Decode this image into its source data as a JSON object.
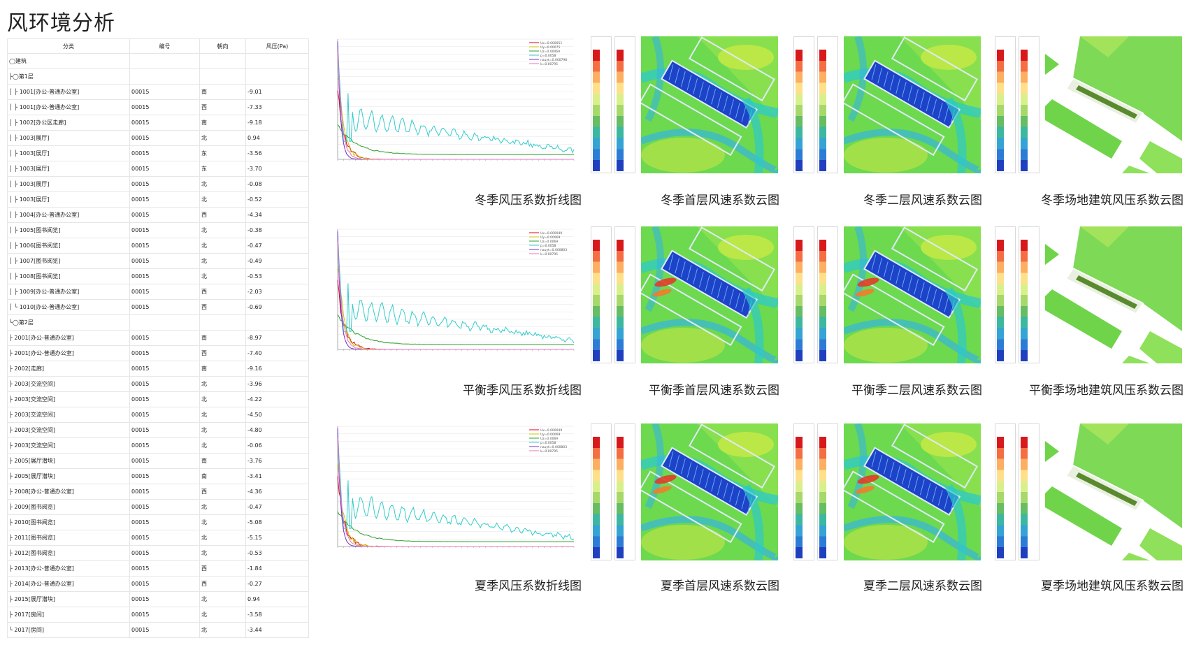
{
  "title": "风环境分析",
  "table": {
    "headers": [
      "分类",
      "编号",
      "朝向",
      "风压(Pa)"
    ],
    "rows": [
      [
        "◯建筑",
        "",
        "",
        ""
      ],
      [
        "├◯第1层",
        "",
        "",
        ""
      ],
      [
        "│ ├ 1001[办公-普通办公室]",
        "00015",
        "南",
        "-9.01"
      ],
      [
        "│ ├ 1001[办公-普通办公室]",
        "00015",
        "西",
        "-7.33"
      ],
      [
        "│ ├ 1002[办公区走廊]",
        "00015",
        "南",
        "-9.18"
      ],
      [
        "│ ├ 1003[展厅]",
        "00015",
        "北",
        "0.94"
      ],
      [
        "│ ├ 1003[展厅]",
        "00015",
        "东",
        "-3.56"
      ],
      [
        "│ ├ 1003[展厅]",
        "00015",
        "东",
        "-3.70"
      ],
      [
        "│ ├ 1003[展厅]",
        "00015",
        "北",
        "-0.08"
      ],
      [
        "│ ├ 1003[展厅]",
        "00015",
        "北",
        "-0.52"
      ],
      [
        "│ ├ 1004[办公-普通办公室]",
        "00015",
        "西",
        "-4.34"
      ],
      [
        "│ ├ 1005[图书阅览]",
        "00015",
        "北",
        "-0.38"
      ],
      [
        "│ ├ 1006[图书阅览]",
        "00015",
        "北",
        "-0.47"
      ],
      [
        "│ ├ 1007[图书阅览]",
        "00015",
        "北",
        "-0.49"
      ],
      [
        "│ ├ 1008[图书阅览]",
        "00015",
        "北",
        "-0.53"
      ],
      [
        "│ ├ 1009[办公-普通办公室]",
        "00015",
        "西",
        "-2.03"
      ],
      [
        "│ └ 1010[办公-普通办公室]",
        "00015",
        "西",
        "-0.69"
      ],
      [
        "└◯第2层",
        "",
        "",
        ""
      ],
      [
        "  ├ 2001[办公-普通办公室]",
        "00015",
        "南",
        "-8.97"
      ],
      [
        "  ├ 2001[办公-普通办公室]",
        "00015",
        "西",
        "-7.40"
      ],
      [
        "  ├ 2002[走廊]",
        "00015",
        "南",
        "-9.16"
      ],
      [
        "  ├ 2003[交流空间]",
        "00015",
        "北",
        "-3.96"
      ],
      [
        "  ├ 2003[交流空间]",
        "00015",
        "北",
        "-4.22"
      ],
      [
        "  ├ 2003[交流空间]",
        "00015",
        "北",
        "-4.50"
      ],
      [
        "  ├ 2003[交流空间]",
        "00015",
        "北",
        "-4.80"
      ],
      [
        "  ├ 2003[交流空间]",
        "00015",
        "北",
        "-0.06"
      ],
      [
        "  ├ 2005[展厅潜块]",
        "00015",
        "南",
        "-3.76"
      ],
      [
        "  ├ 2005[展厅潜块]",
        "00015",
        "南",
        "-3.41"
      ],
      [
        "  ├ 2008[办公-普通办公室]",
        "00015",
        "西",
        "-4.36"
      ],
      [
        "  ├ 2009[图书阅览]",
        "00015",
        "北",
        "-0.47"
      ],
      [
        "  ├ 2010[图书阅览]",
        "00015",
        "北",
        "-5.08"
      ],
      [
        "  ├ 2011[图书阅览]",
        "00015",
        "北",
        "-5.15"
      ],
      [
        "  ├ 2012[图书阅览]",
        "00015",
        "北",
        "-0.53"
      ],
      [
        "  ├ 2013[办公-普通办公室]",
        "00015",
        "西",
        "-1.84"
      ],
      [
        "  ├ 2014[办公-普通办公室]",
        "00015",
        "西",
        "-0.27"
      ],
      [
        "  ├ 2015[展厅潜块]",
        "00015",
        "北",
        "0.94"
      ],
      [
        "  ├ 2017[房间]",
        "00015",
        "北",
        "-3.58"
      ],
      [
        "  └ 2017[房间]",
        "00015",
        "北",
        "-3.44"
      ]
    ]
  },
  "rows": [
    {
      "chart_caption": "冬季风压系数折线图",
      "c1_caption": "冬季首层风速系数云图",
      "c2_caption": "冬季二层风速系数云图",
      "c3_caption": "冬季场地建筑风压系数云图",
      "legend": [
        "Ux=0.000051",
        "Uy=0.00075",
        "Uz=0.00069",
        "p=0.0058",
        "nauyt=0.000798",
        "k=0.00795"
      ]
    },
    {
      "chart_caption": "平衡季风压系数折线图",
      "c1_caption": "平衡季首层风速系数云图",
      "c2_caption": "平衡季二层风速系数云图",
      "c3_caption": "平衡季场地建筑风压系数云图",
      "legend": [
        "Ux=0.000049",
        "Uy=0.00069",
        "Uz=0.0069",
        "p=0.0058",
        "nauyt=0.000803",
        "k=0.00795"
      ]
    },
    {
      "chart_caption": "夏季风压系数折线图",
      "c1_caption": "夏季首层风速系数云图",
      "c2_caption": "夏季二层风速系数云图",
      "c3_caption": "夏季场地建筑风压系数云图",
      "legend": [
        "Ux=0.000049",
        "Uy=0.00069",
        "Uz=0.0069",
        "p=0.0058",
        "nauyt=0.000803",
        "k=0.00795"
      ]
    }
  ],
  "legend_colors": [
    "#e3001b",
    "#c9c900",
    "#2ca02c",
    "#33cccc",
    "#7b2fbe",
    "#e377c2"
  ],
  "colormap": [
    "#d7191c",
    "#f46d43",
    "#fdae61",
    "#fee08b",
    "#d9ef8b",
    "#a6d96a",
    "#66bd63",
    "#3cb8a0",
    "#35a3d4",
    "#2c7bd6",
    "#1f3fbf"
  ]
}
